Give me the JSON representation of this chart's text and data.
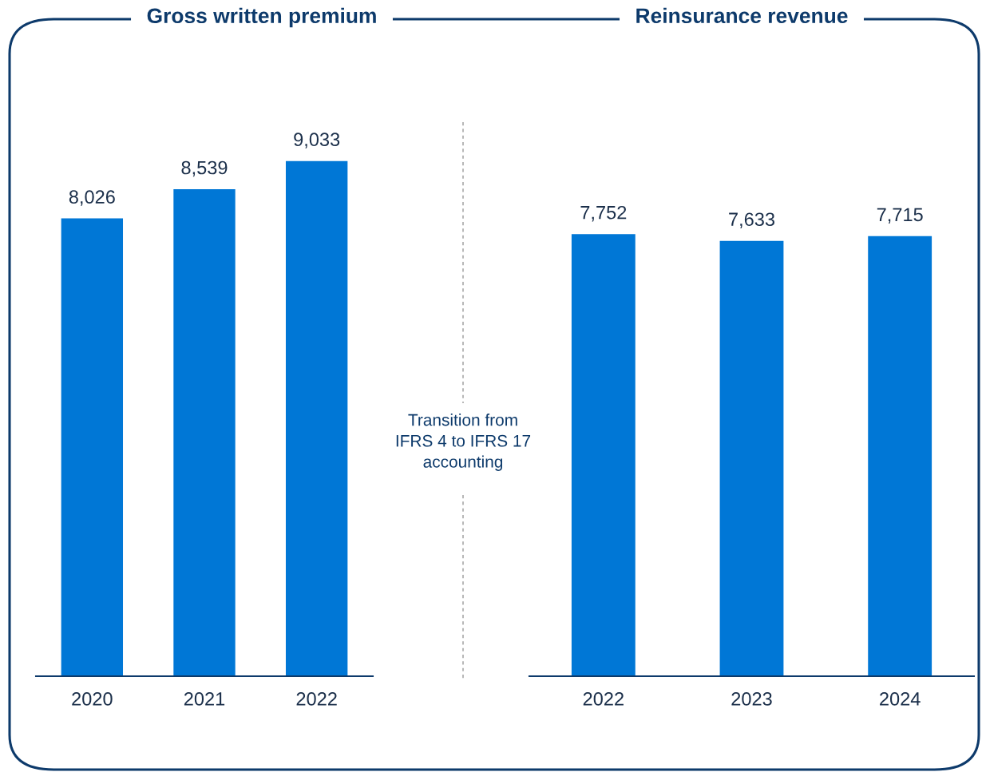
{
  "chart_data": [
    {
      "type": "bar",
      "title": "Gross written premium",
      "categories": [
        "2020",
        "2021",
        "2022"
      ],
      "values": [
        8026,
        8539,
        9033
      ],
      "value_labels": [
        "8,026",
        "8,539",
        "9,033"
      ],
      "color": "#0077d6",
      "annotations": [
        "Transition from\nIFRS 4 to IFRS 17\naccounting"
      ]
    },
    {
      "type": "bar",
      "title": "Reinsurance revenue",
      "categories": [
        "2022",
        "2023",
        "2024"
      ],
      "values": [
        7752,
        7633,
        7715
      ],
      "value_labels": [
        "7,752",
        "7,633",
        "7,715"
      ],
      "color": "#0077d6"
    }
  ]
}
